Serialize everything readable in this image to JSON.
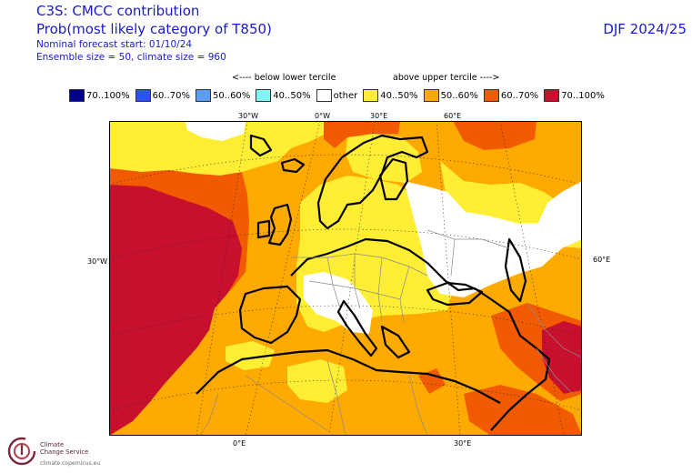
{
  "header": {
    "title": "C3S: CMCC contribution",
    "subtitle": "Prob(most likely category of T850)",
    "forecast_start": "Nominal forecast start: 01/10/24",
    "ensemble": "Ensemble size = 50, climate size = 960",
    "season": "DJF 2024/25"
  },
  "legend": {
    "below_label": "<---- below lower tercile",
    "above_label": "above upper tercile ---->",
    "items": [
      {
        "label": "70..100%",
        "color": "#00008b"
      },
      {
        "label": "60..70%",
        "color": "#2b53f0"
      },
      {
        "label": "50..60%",
        "color": "#5d9cf2"
      },
      {
        "label": "40..50%",
        "color": "#7ff5f5"
      },
      {
        "label": "other",
        "color": "#ffffff"
      },
      {
        "label": "40..50%",
        "color": "#ffee33"
      },
      {
        "label": "50..60%",
        "color": "#ffaa00"
      },
      {
        "label": "60..70%",
        "color": "#f25a00"
      },
      {
        "label": "70..100%",
        "color": "#c8102e"
      }
    ]
  },
  "map": {
    "top_labels": [
      "30°W",
      "0°W",
      "30°E",
      "60°E"
    ],
    "left_label": "30°W",
    "right_label": "60°E",
    "bottom_labels": [
      "0°E",
      "30°E"
    ]
  },
  "logo": {
    "line1": "Climate",
    "line2": "Change Service",
    "url": "climate.copernicus.eu"
  }
}
